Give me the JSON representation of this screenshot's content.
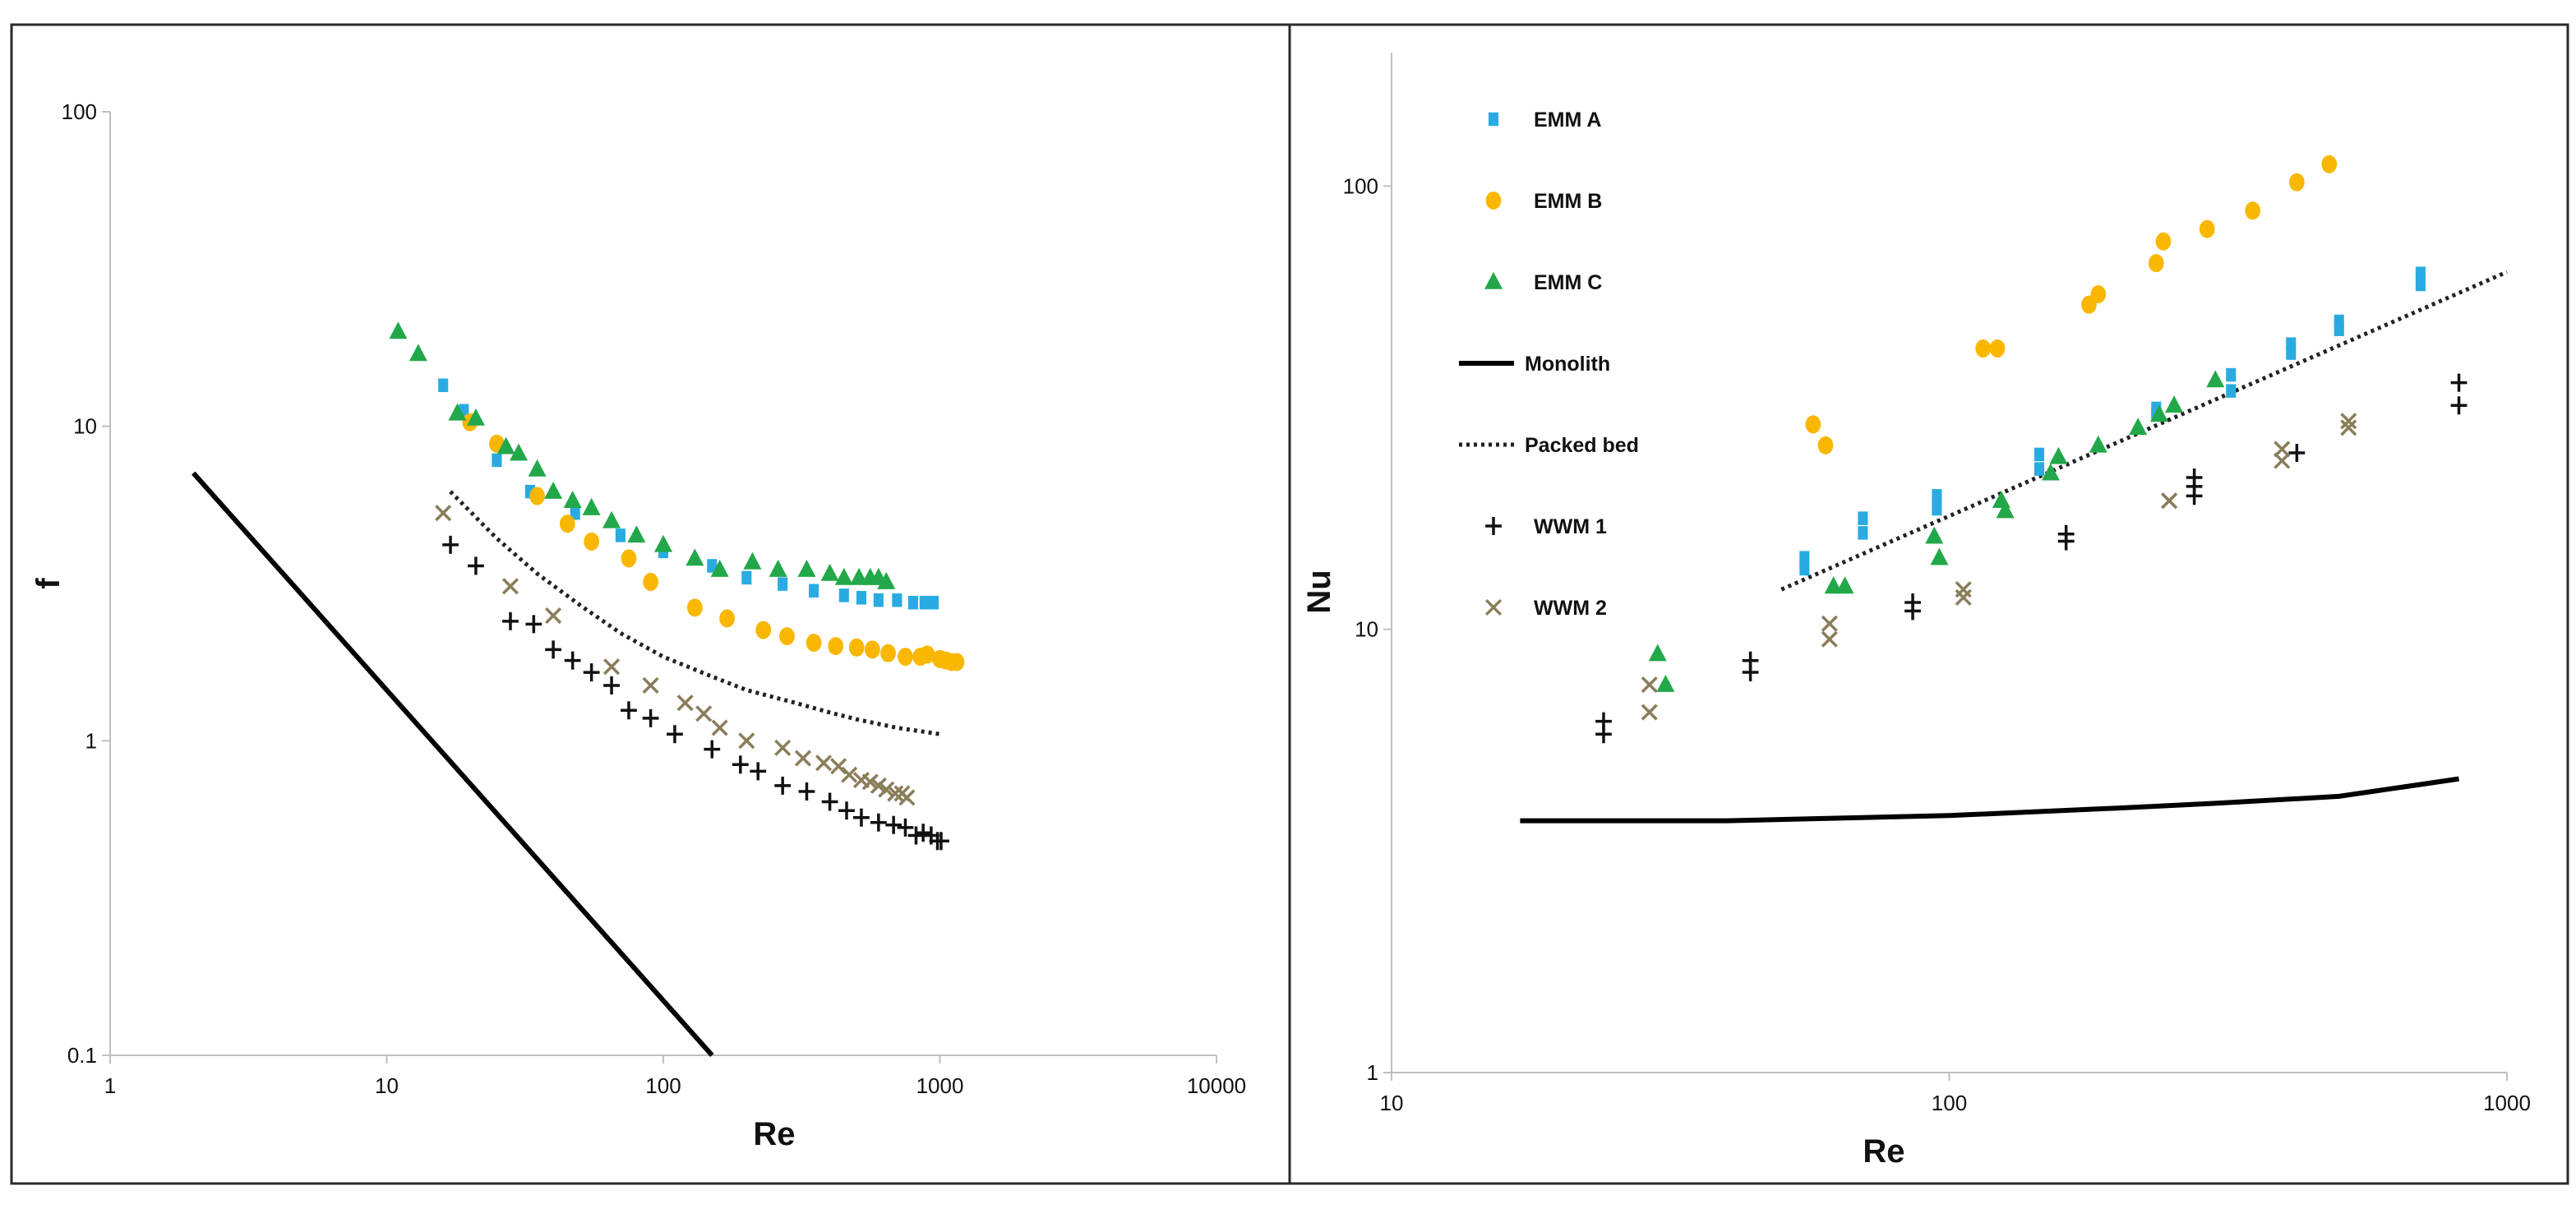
{
  "figure": {
    "description_labels": [
      "f vs Re",
      "Nu vs Re"
    ]
  },
  "legend": {
    "items": [
      {
        "key": "emm_a",
        "label": "EMM A",
        "marker": "square",
        "color": "#29abe2"
      },
      {
        "key": "emm_b",
        "label": "EMM B",
        "marker": "circle",
        "color": "#f9b700"
      },
      {
        "key": "emm_c",
        "label": "EMM C",
        "marker": "triangle",
        "color": "#22a84a"
      },
      {
        "key": "monolith",
        "label": "Monolith",
        "marker": "solid-line",
        "color": "#000000"
      },
      {
        "key": "packed_bed",
        "label": "Packed bed",
        "marker": "dotted-line",
        "color": "#222222"
      },
      {
        "key": "wwm1",
        "label": "WWM 1",
        "marker": "plus",
        "color": "#111111"
      },
      {
        "key": "wwm2",
        "label": "WWM 2",
        "marker": "cross",
        "color": "#8a7d5a"
      }
    ]
  },
  "chart_data": [
    {
      "type": "scatter",
      "title": "",
      "xlabel": "Re",
      "ylabel": "f",
      "xscale": "log",
      "yscale": "log",
      "xlim": [
        1,
        10000
      ],
      "ylim": [
        0.1,
        100
      ],
      "xticks": [
        1,
        10,
        100,
        1000,
        10000
      ],
      "xtick_labels": [
        "1",
        "10",
        "100",
        "1000",
        "10000"
      ],
      "yticks": [
        0.1,
        1,
        10,
        100
      ],
      "ytick_labels": [
        "0.1",
        "1",
        "10",
        "100"
      ],
      "series": [
        {
          "key": "monolith",
          "name": "Monolith",
          "style": "solid-line",
          "x": [
            2,
            150
          ],
          "y": [
            7.1,
            0.1
          ]
        },
        {
          "key": "packed_bed",
          "name": "Packed bed",
          "style": "dotted-line",
          "x": [
            17,
            25,
            35,
            50,
            70,
            100,
            150,
            200,
            300,
            400,
            500,
            700,
            1000
          ],
          "y": [
            6.2,
            4.4,
            3.4,
            2.7,
            2.2,
            1.85,
            1.6,
            1.45,
            1.32,
            1.23,
            1.17,
            1.1,
            1.05
          ]
        },
        {
          "key": "emm_a",
          "name": "EMM A",
          "style": "square",
          "x": [
            16,
            19,
            25,
            33,
            48,
            70,
            100,
            150,
            200,
            270,
            350,
            450,
            520,
            600,
            700,
            800,
            880,
            950
          ],
          "y": [
            13.5,
            11.2,
            7.8,
            6.2,
            5.3,
            4.5,
            4.0,
            3.6,
            3.3,
            3.15,
            3.0,
            2.9,
            2.85,
            2.8,
            2.8,
            2.75,
            2.75,
            2.75
          ]
        },
        {
          "key": "emm_b",
          "name": "EMM B",
          "style": "circle",
          "x": [
            20,
            25,
            35,
            45,
            55,
            75,
            90,
            130,
            170,
            230,
            280,
            350,
            420,
            500,
            570,
            650,
            750,
            850,
            900,
            1000,
            1050,
            1100,
            1150
          ],
          "y": [
            10.3,
            8.8,
            6.0,
            4.9,
            4.3,
            3.8,
            3.2,
            2.65,
            2.45,
            2.25,
            2.15,
            2.05,
            2.0,
            1.98,
            1.95,
            1.9,
            1.85,
            1.85,
            1.88,
            1.82,
            1.8,
            1.78,
            1.78
          ]
        },
        {
          "key": "emm_c",
          "name": "EMM C",
          "style": "triangle",
          "x": [
            11,
            13,
            18,
            21,
            27,
            30,
            35,
            40,
            47,
            55,
            65,
            80,
            100,
            130,
            160,
            210,
            260,
            330,
            400,
            450,
            510,
            560,
            600,
            640
          ],
          "y": [
            20,
            17,
            11,
            10.6,
            8.6,
            8.2,
            7.3,
            6.2,
            5.8,
            5.5,
            5.0,
            4.5,
            4.2,
            3.8,
            3.5,
            3.7,
            3.5,
            3.5,
            3.4,
            3.3,
            3.3,
            3.3,
            3.3,
            3.2
          ]
        },
        {
          "key": "wwm1",
          "name": "WWM 1",
          "style": "plus",
          "x": [
            17,
            21,
            28,
            34,
            40,
            47,
            55,
            65,
            75,
            90,
            110,
            150,
            190,
            220,
            270,
            330,
            400,
            460,
            520,
            600,
            680,
            750,
            820,
            870,
            930,
            980,
            1010
          ],
          "y": [
            4.2,
            3.6,
            2.4,
            2.35,
            1.95,
            1.8,
            1.65,
            1.5,
            1.25,
            1.18,
            1.05,
            0.94,
            0.84,
            0.8,
            0.72,
            0.69,
            0.64,
            0.6,
            0.57,
            0.55,
            0.54,
            0.53,
            0.5,
            0.51,
            0.5,
            0.48,
            0.48
          ]
        },
        {
          "key": "wwm2",
          "name": "WWM 2",
          "style": "cross",
          "x": [
            16,
            28,
            40,
            65,
            90,
            120,
            140,
            160,
            200,
            270,
            320,
            380,
            430,
            470,
            520,
            560,
            600,
            640,
            690,
            730,
            760
          ],
          "y": [
            5.3,
            3.1,
            2.5,
            1.72,
            1.5,
            1.32,
            1.22,
            1.1,
            1.0,
            0.95,
            0.88,
            0.85,
            0.83,
            0.78,
            0.75,
            0.74,
            0.72,
            0.7,
            0.68,
            0.68,
            0.66
          ]
        }
      ]
    },
    {
      "type": "scatter",
      "title": "",
      "xlabel": "Re",
      "ylabel": "Nu",
      "xscale": "log",
      "yscale": "log",
      "xlim": [
        10,
        1000
      ],
      "ylim": [
        1,
        200
      ],
      "xticks": [
        10,
        100,
        1000
      ],
      "xtick_labels": [
        "10",
        "100",
        "1000"
      ],
      "yticks": [
        1,
        10,
        100
      ],
      "ytick_labels": [
        "1",
        "10",
        "100"
      ],
      "series": [
        {
          "key": "monolith",
          "name": "Monolith",
          "style": "solid-line",
          "x": [
            17,
            40,
            100,
            200,
            300,
            500,
            820
          ],
          "y": [
            3.7,
            3.7,
            3.8,
            3.95,
            4.05,
            4.2,
            4.6
          ]
        },
        {
          "key": "packed_bed",
          "name": "Packed bed",
          "style": "dotted-line",
          "x": [
            50,
            1000
          ],
          "y": [
            12.3,
            64
          ]
        },
        {
          "key": "emm_a",
          "name": "EMM A",
          "style": "square",
          "x": [
            55,
            55,
            70,
            70,
            95,
            95,
            145,
            145,
            235,
            235,
            320,
            320,
            410,
            410,
            500,
            500,
            700,
            700
          ],
          "y": [
            13.7,
            14.5,
            16.5,
            17.8,
            18.7,
            20.0,
            23.0,
            24.8,
            30.5,
            31.5,
            34.5,
            37.5,
            42,
            44,
            47.5,
            49.5,
            60,
            63.5
          ]
        },
        {
          "key": "emm_b",
          "name": "EMM B",
          "style": "circle",
          "x": [
            57,
            60,
            115,
            122,
            178,
            185,
            235,
            242,
            290,
            350,
            420,
            480
          ],
          "y": [
            29,
            26,
            43,
            43,
            54,
            57,
            67,
            75,
            80,
            88,
            102,
            112
          ]
        },
        {
          "key": "emm_c",
          "name": "EMM C",
          "style": "triangle",
          "x": [
            30,
            31,
            62,
            65,
            94,
            96,
            124,
            126,
            152,
            157,
            185,
            218,
            238,
            253,
            300
          ],
          "y": [
            8.8,
            7.5,
            12.5,
            12.5,
            16.2,
            14.5,
            19.5,
            18.5,
            22.5,
            24.5,
            26,
            28.5,
            30.5,
            32,
            36.5
          ]
        },
        {
          "key": "wwm1",
          "name": "WWM 1",
          "style": "plus",
          "x": [
            24,
            24,
            44,
            44,
            86,
            86,
            162,
            162,
            275,
            275,
            275,
            420,
            820,
            820
          ],
          "y": [
            5.8,
            6.2,
            8.0,
            8.5,
            11.0,
            11.5,
            15.8,
            16.4,
            20.0,
            21.0,
            22.0,
            25.0,
            32,
            36
          ]
        },
        {
          "key": "wwm2",
          "name": "WWM 2",
          "style": "cross",
          "x": [
            29,
            29,
            61,
            61,
            106,
            106,
            248,
            248,
            395,
            395,
            520,
            520
          ],
          "y": [
            6.5,
            7.5,
            9.5,
            10.3,
            11.8,
            12.3,
            19.5,
            19.5,
            24,
            25.5,
            28.5,
            29.5
          ]
        }
      ]
    }
  ]
}
